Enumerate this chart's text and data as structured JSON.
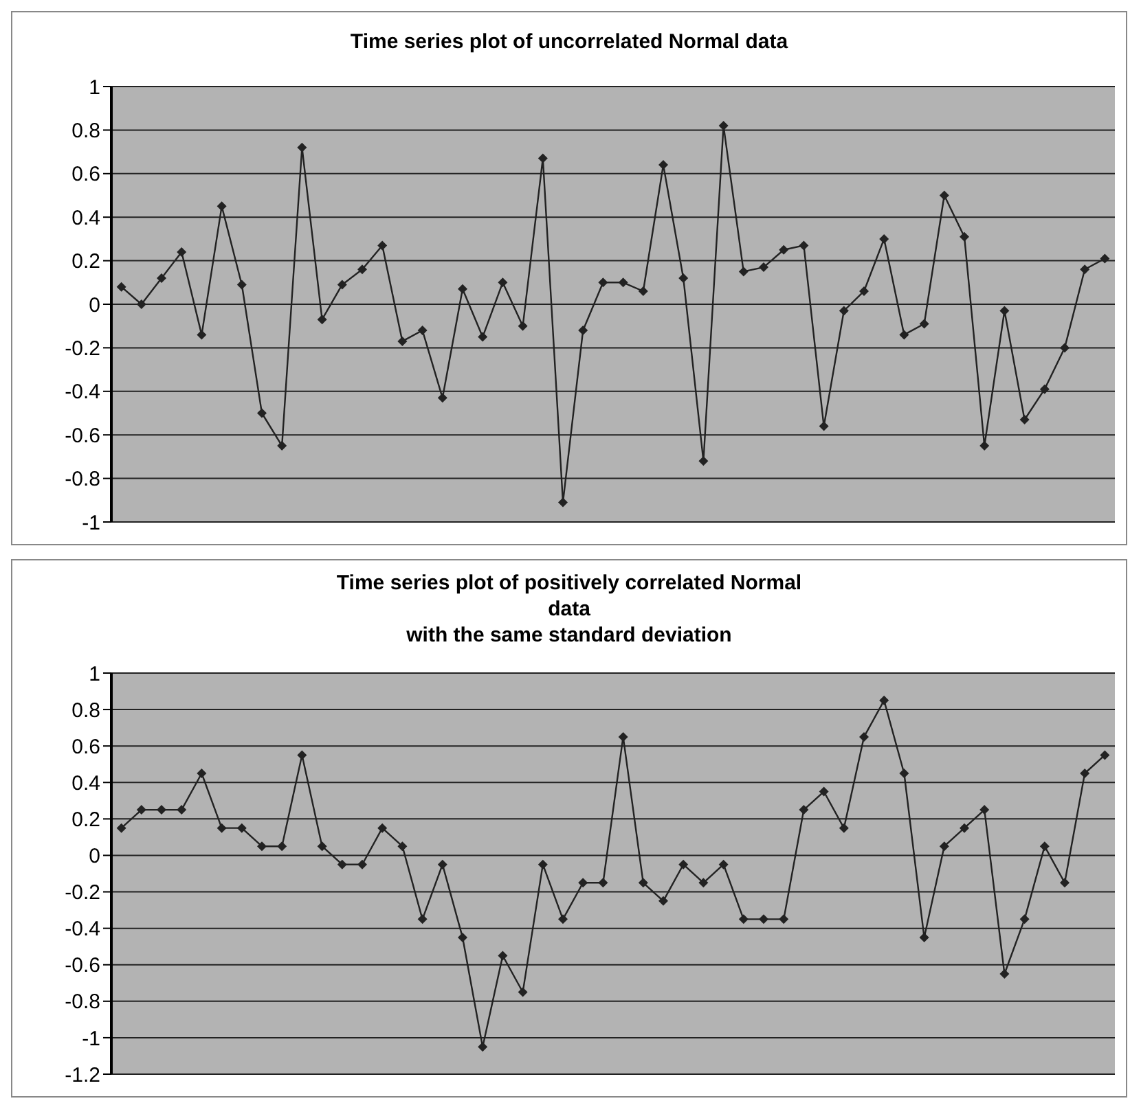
{
  "chart_data": [
    {
      "type": "line",
      "title": "Time series plot of uncorrelated Normal data",
      "categories": [
        null,
        null,
        null,
        null,
        null,
        null,
        null,
        null,
        null,
        null,
        null,
        null,
        null,
        null,
        null,
        null,
        null,
        null,
        null,
        null,
        null,
        null,
        null,
        null,
        null,
        null,
        null,
        null,
        null,
        null,
        null,
        null,
        null,
        null,
        null,
        null,
        null,
        null,
        null,
        null,
        null,
        null,
        null,
        null,
        null,
        null,
        null,
        null,
        null,
        null
      ],
      "series": [
        {
          "color": "#222222",
          "values": [
            0.08,
            0,
            0.12,
            0.24,
            -0.14,
            0.45,
            0.09,
            -0.5,
            -0.65,
            0.72,
            -0.07,
            0.09,
            0.16,
            0.27,
            -0.17,
            -0.12,
            -0.43,
            0.07,
            -0.15,
            0.1,
            -0.1,
            0.67,
            -0.91,
            -0.12,
            0.1,
            0.1,
            0.06,
            0.64,
            0.12,
            -0.72,
            0.82,
            0.15,
            0.17,
            0.25,
            0.27,
            -0.56,
            -0.03,
            0.06,
            0.3,
            -0.14,
            -0.09,
            0.5,
            0.31,
            -0.65,
            -0.03,
            -0.53,
            -0.39,
            -0.2,
            0.16,
            0.21
          ]
        }
      ],
      "ylim": [
        -1,
        1
      ],
      "yticks": [
        -1,
        -0.8,
        -0.6,
        -0.4,
        -0.2,
        0,
        0.2,
        0.4,
        0.6,
        0.8,
        1
      ],
      "grid": "y",
      "marker": "diamond",
      "line_style": "solid",
      "tick_labels": "y"
    },
    {
      "type": "line",
      "title": "Time series plot of positively correlated Normal\ndata\nwith the same standard deviation",
      "categories": [
        null,
        null,
        null,
        null,
        null,
        null,
        null,
        null,
        null,
        null,
        null,
        null,
        null,
        null,
        null,
        null,
        null,
        null,
        null,
        null,
        null,
        null,
        null,
        null,
        null,
        null,
        null,
        null,
        null,
        null,
        null,
        null,
        null,
        null,
        null,
        null,
        null,
        null,
        null,
        null,
        null,
        null,
        null,
        null,
        null,
        null,
        null,
        null,
        null,
        null
      ],
      "series": [
        {
          "color": "#222222",
          "values": [
            0.15,
            0.25,
            0.25,
            0.25,
            0.45,
            0.15,
            0.15,
            0.05,
            0.05,
            0.55,
            0.05,
            -0.05,
            -0.05,
            0.15,
            0.05,
            -0.35,
            -0.05,
            -0.45,
            -1.05,
            -0.55,
            -0.75,
            -0.05,
            -0.35,
            -0.15,
            -0.15,
            0.65,
            -0.15,
            -0.25,
            -0.05,
            -0.15,
            -0.05,
            -0.35,
            -0.35,
            -0.35,
            0.25,
            0.35,
            0.15,
            0.65,
            0.85,
            0.45,
            -0.45,
            0.05,
            0.15,
            0.25,
            -0.65,
            -0.35,
            0.05,
            -0.15,
            0.45,
            0.55
          ]
        }
      ],
      "ylim": [
        -1.2,
        1
      ],
      "yticks": [
        -1.2,
        -1,
        -0.8,
        -0.6,
        -0.4,
        -0.2,
        0,
        0.2,
        0.4,
        0.6,
        0.8,
        1
      ],
      "grid": "y",
      "marker": "diamond",
      "line_style": "solid",
      "tick_labels": "y"
    }
  ]
}
